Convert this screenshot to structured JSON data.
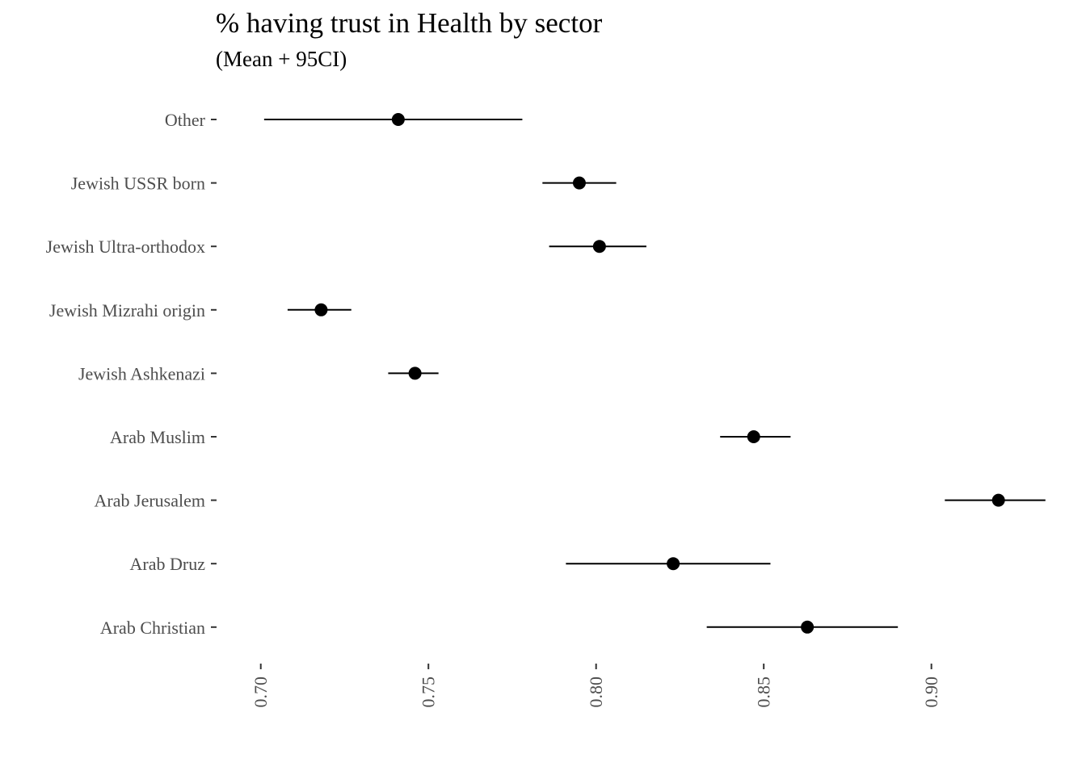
{
  "chart_data": {
    "type": "scatter",
    "subtype": "point-range",
    "title": "% having trust in Health by sector",
    "subtitle": "(Mean + 95CI)",
    "xlabel": "",
    "ylabel": "",
    "categories": [
      "Other",
      "Jewish USSR born",
      "Jewish Ultra-orthodox",
      "Jewish Mizrahi origin",
      "Jewish Ashkenazi",
      "Arab Muslim",
      "Arab Jerusalem",
      "Arab Druz",
      "Arab Christian"
    ],
    "mean": [
      0.741,
      0.795,
      0.801,
      0.718,
      0.746,
      0.847,
      0.92,
      0.823,
      0.863
    ],
    "ci_low": [
      0.701,
      0.784,
      0.786,
      0.708,
      0.738,
      0.837,
      0.904,
      0.791,
      0.833
    ],
    "ci_high": [
      0.778,
      0.806,
      0.815,
      0.727,
      0.753,
      0.858,
      0.934,
      0.852,
      0.89
    ],
    "xlim": [
      0.6885,
      0.9355
    ],
    "xticks": [
      0.7,
      0.75,
      0.8,
      0.85,
      0.9
    ],
    "xtick_labels": [
      "0.70",
      "0.75",
      "0.80",
      "0.85",
      "0.90"
    ],
    "grid": false,
    "legend": "none",
    "point_color": "#000000",
    "line_color": "#000000"
  }
}
